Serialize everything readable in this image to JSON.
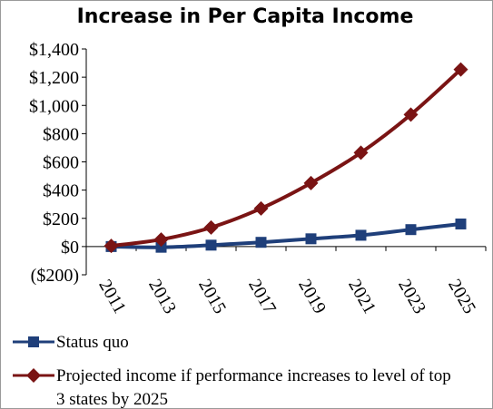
{
  "chart_data": {
    "type": "line",
    "title": "Increase in Per Capita Income",
    "xlabel": "",
    "ylabel": "",
    "categories": [
      "2011",
      "2013",
      "2015",
      "2017",
      "2019",
      "2021",
      "2023",
      "2025"
    ],
    "ylim": [
      -200,
      1400
    ],
    "y_ticks": [
      1400,
      1200,
      1000,
      800,
      600,
      400,
      200,
      0,
      -200
    ],
    "y_tick_labels": [
      "$1,400",
      "$1,200",
      "$1,000",
      "$800",
      "$600",
      "$400",
      "$200",
      "$0",
      "($200)"
    ],
    "grid": false,
    "legend_position": "bottom",
    "series": [
      {
        "name": "Status quo",
        "values": [
          0,
          -5,
          10,
          30,
          55,
          80,
          120,
          160
        ],
        "color": "#1f3f7a",
        "marker": "square"
      },
      {
        "name": "Projected income if performance increases to level of top 3 states by 2025",
        "name_lines": [
          "Projected income if performance increases to level of top",
          "3 states by 2025"
        ],
        "values": [
          5,
          50,
          135,
          270,
          450,
          665,
          935,
          1255
        ],
        "color": "#7a1414",
        "marker": "diamond"
      }
    ]
  }
}
